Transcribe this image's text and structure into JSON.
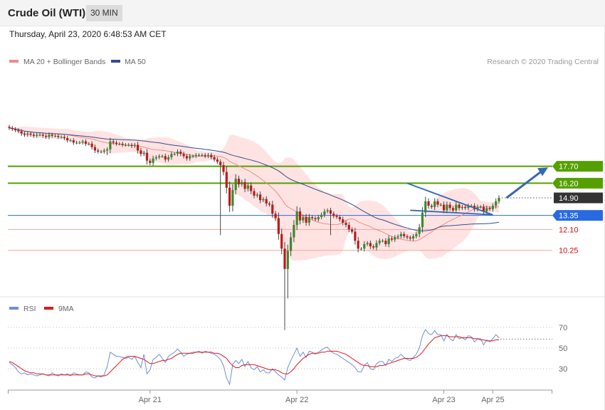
{
  "header": {
    "title": "Crude Oil (WTI)",
    "interval": "30 MIN",
    "datetime": "Thursday, April 23, 2020 6:48:53 AM CET",
    "copyright": "Research © 2020 Trading Central"
  },
  "colors": {
    "bull": "#3a8a2a",
    "bear": "#c01818",
    "resistance": "#55a000",
    "support_line": "#f0a8a0",
    "support_label": "#d01010",
    "pivot": "#2a6ae0",
    "price": "#333333",
    "ma20": "#f08a8a",
    "ma50": "#2f4d8c",
    "band_fill": "#ffe3e3",
    "rsi": "#6f8fd8",
    "rsi_ma": "#dd1a1a",
    "arrow": "#3568b0"
  },
  "chart_data": [
    {
      "type": "candlestick",
      "legend": [
        "MA 20 + Bollinger Bands",
        "MA 50"
      ],
      "ylim": [
        3.0,
        25.0
      ],
      "x_ticks": [
        {
          "label": "Apr 21",
          "index": 46
        },
        {
          "label": "Apr 22",
          "index": 94
        },
        {
          "label": "Apr 23",
          "index": 142
        },
        {
          "label": "Apr 25",
          "index": 158
        }
      ],
      "levels": [
        {
          "value": 17.7,
          "label": "17.70",
          "kind": "resistance"
        },
        {
          "value": 16.2,
          "label": "16.20",
          "kind": "resistance"
        },
        {
          "value": 14.9,
          "label": "14.90",
          "kind": "price"
        },
        {
          "value": 13.35,
          "label": "13.35",
          "kind": "pivot"
        },
        {
          "value": 12.1,
          "label": "12.10",
          "kind": "support"
        },
        {
          "value": 10.25,
          "label": "10.25",
          "kind": "support"
        }
      ],
      "closes": [
        21.1,
        21.0,
        20.9,
        20.8,
        20.6,
        20.5,
        20.6,
        20.5,
        20.4,
        20.5,
        20.5,
        20.4,
        20.3,
        20.5,
        20.4,
        20.4,
        20.3,
        20.3,
        20.2,
        20.0,
        20.0,
        19.8,
        19.8,
        19.8,
        19.9,
        19.7,
        19.7,
        19.4,
        19.1,
        19.0,
        19.0,
        19.1,
        19.2,
        19.9,
        19.8,
        19.7,
        19.7,
        19.6,
        19.6,
        19.6,
        19.5,
        19.6,
        19.1,
        18.8,
        18.9,
        18.2,
        18.0,
        18.4,
        18.5,
        18.6,
        18.6,
        18.3,
        18.5,
        18.8,
        18.8,
        19.0,
        18.8,
        18.6,
        18.4,
        18.6,
        18.6,
        18.7,
        18.7,
        18.7,
        18.6,
        18.7,
        18.5,
        18.3,
        18.1,
        17.8,
        17.2,
        15.8,
        14.2,
        15.6,
        16.6,
        16.1,
        16.3,
        15.7,
        16.0,
        15.5,
        15.1,
        15.2,
        14.7,
        14.8,
        14.4,
        14.3,
        13.5,
        13.1,
        11.7,
        10.4,
        8.6,
        10.2,
        11.4,
        12.5,
        13.7,
        12.9,
        13.2,
        12.7,
        13.2,
        13.1,
        13.0,
        13.2,
        13.4,
        13.7,
        13.8,
        13.5,
        13.3,
        13.2,
        13.0,
        12.7,
        12.5,
        12.1,
        11.9,
        11.1,
        10.4,
        10.4,
        10.8,
        10.9,
        10.6,
        10.5,
        10.9,
        11.1,
        11.1,
        10.8,
        11.3,
        11.2,
        11.4,
        11.5,
        11.7,
        11.5,
        11.4,
        11.3,
        11.5,
        11.7,
        12.3,
        13.6,
        14.6,
        14.2,
        14.1,
        14.6,
        14.3,
        14.3,
        13.8,
        14.3,
        14.0,
        13.8,
        14.3,
        14.0,
        14.1,
        14.0,
        14.2,
        14.2,
        13.9,
        14.1,
        14.1,
        13.7,
        14.0,
        13.9,
        14.2,
        14.6,
        14.9
      ],
      "opens": [
        21.2,
        21.1,
        21.0,
        20.9,
        20.8,
        20.6,
        20.5,
        20.6,
        20.5,
        20.4,
        20.5,
        20.5,
        20.4,
        20.3,
        20.5,
        20.4,
        20.4,
        20.3,
        20.3,
        20.2,
        20.0,
        20.0,
        19.8,
        19.8,
        19.8,
        19.9,
        19.7,
        19.7,
        19.4,
        19.1,
        19.0,
        19.0,
        19.1,
        19.2,
        19.9,
        19.8,
        19.7,
        19.7,
        19.6,
        19.6,
        19.6,
        19.5,
        19.6,
        19.1,
        18.8,
        18.9,
        18.2,
        18.0,
        18.4,
        18.5,
        18.6,
        18.6,
        18.3,
        18.5,
        18.8,
        18.8,
        19.0,
        18.8,
        18.6,
        18.4,
        18.6,
        18.6,
        18.7,
        18.7,
        18.7,
        18.6,
        18.7,
        18.5,
        18.3,
        18.1,
        17.8,
        17.2,
        15.8,
        14.2,
        15.6,
        16.6,
        16.1,
        16.3,
        15.7,
        16.0,
        15.5,
        15.1,
        15.2,
        14.7,
        14.8,
        14.4,
        14.3,
        13.5,
        13.1,
        11.7,
        10.4,
        8.6,
        10.2,
        11.4,
        12.5,
        13.7,
        12.9,
        13.2,
        12.7,
        13.2,
        13.1,
        13.0,
        13.2,
        13.4,
        13.7,
        13.8,
        13.5,
        13.3,
        13.2,
        13.0,
        12.7,
        12.5,
        12.1,
        11.9,
        11.1,
        10.4,
        10.4,
        10.8,
        10.9,
        10.6,
        10.5,
        10.9,
        11.1,
        11.1,
        10.8,
        11.3,
        11.2,
        11.4,
        11.5,
        11.7,
        11.5,
        11.4,
        11.3,
        11.5,
        11.7,
        12.3,
        13.6,
        14.6,
        14.2,
        14.1,
        14.6,
        14.3,
        14.3,
        13.8,
        14.3,
        14.0,
        13.8,
        14.3,
        14.0,
        14.1,
        14.0,
        14.2,
        14.2,
        13.9,
        14.1,
        14.1,
        13.7,
        14.0,
        13.9,
        14.2,
        14.6
      ],
      "lows": {
        "32": 18.7,
        "69": 11.6,
        "90": 3.2,
        "91": 6.0,
        "105": 11.6
      }
    },
    {
      "type": "line",
      "legend": [
        "RSI",
        "9MA"
      ],
      "ylim": [
        10,
        80
      ],
      "y_ticks": [
        70,
        50,
        30
      ],
      "rsi": [
        36,
        34,
        31,
        27,
        25,
        26,
        24,
        25,
        24,
        23,
        24,
        25,
        24,
        23,
        26,
        24,
        23,
        25,
        24,
        25,
        23,
        26,
        25,
        24,
        24,
        27,
        26,
        22,
        21,
        23,
        22,
        24,
        32,
        46,
        44,
        42,
        42,
        41,
        40,
        41,
        39,
        42,
        36,
        31,
        44,
        25,
        29,
        39,
        41,
        44,
        40,
        36,
        42,
        44,
        46,
        49,
        46,
        42,
        44,
        45,
        46,
        46,
        47,
        45,
        47,
        46,
        45,
        44,
        42,
        39,
        33,
        21,
        15,
        34,
        38,
        35,
        39,
        32,
        37,
        31,
        29,
        32,
        27,
        29,
        26,
        26,
        30,
        27,
        24,
        22,
        19,
        31,
        38,
        44,
        50,
        42,
        46,
        41,
        47,
        46,
        44,
        46,
        48,
        50,
        51,
        47,
        45,
        44,
        42,
        40,
        38,
        36,
        34,
        31,
        27,
        27,
        33,
        36,
        30,
        29,
        35,
        37,
        37,
        33,
        39,
        37,
        40,
        41,
        44,
        41,
        39,
        38,
        41,
        44,
        50,
        62,
        68,
        64,
        63,
        67,
        63,
        63,
        57,
        63,
        59,
        57,
        63,
        59,
        60,
        58,
        62,
        61,
        56,
        59,
        59,
        53,
        58,
        56,
        59,
        63,
        60
      ],
      "rsi_ma": [
        37,
        36,
        34,
        32,
        30,
        28,
        27,
        26,
        26,
        25,
        25,
        25,
        24,
        24,
        24,
        24,
        24,
        24,
        24,
        24,
        24,
        24,
        24,
        24,
        24,
        25,
        25,
        24,
        23,
        23,
        23,
        23,
        24,
        27,
        30,
        33,
        36,
        39,
        41,
        42,
        42,
        42,
        41,
        40,
        39,
        37,
        35,
        35,
        36,
        37,
        38,
        38,
        39,
        40,
        42,
        44,
        45,
        45,
        45,
        45,
        45,
        46,
        46,
        46,
        46,
        46,
        46,
        45,
        45,
        44,
        42,
        40,
        36,
        33,
        31,
        31,
        33,
        34,
        34,
        34,
        34,
        33,
        32,
        31,
        30,
        29,
        29,
        29,
        28,
        26,
        25,
        25,
        27,
        30,
        34,
        37,
        40,
        42,
        44,
        45,
        45,
        45,
        46,
        46,
        47,
        47,
        47,
        47,
        46,
        45,
        44,
        42,
        40,
        38,
        36,
        34,
        33,
        33,
        32,
        32,
        32,
        33,
        33,
        34,
        35,
        36,
        37,
        38,
        39,
        40,
        40,
        40,
        40,
        41,
        43,
        46,
        50,
        54,
        57,
        60,
        61,
        62,
        62,
        62,
        61,
        61,
        61,
        61,
        60,
        60,
        60,
        60,
        59,
        59,
        58,
        58,
        57,
        57,
        57,
        58,
        58
      ]
    }
  ]
}
